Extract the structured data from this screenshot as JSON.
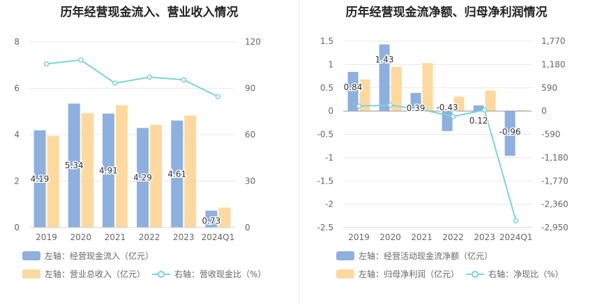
{
  "colors": {
    "bar_primary": "#8eb0de",
    "bar_secondary": "#fdd9a0",
    "line": "#7dd3da",
    "axis_text": "#666666",
    "grid": "#e8e8e8"
  },
  "chart_data": [
    {
      "type": "bar",
      "title": "历年经营现金流入、营业收入情况",
      "categories": [
        "2019",
        "2020",
        "2021",
        "2022",
        "2023",
        "2024Q1"
      ],
      "left_axis": {
        "ticks": [
          "0",
          "2",
          "4",
          "6",
          "8"
        ],
        "range": [
          0,
          8
        ]
      },
      "right_axis": {
        "ticks": [
          "0",
          "30",
          "60",
          "90",
          "120"
        ],
        "range": [
          0,
          120
        ]
      },
      "series": [
        {
          "name": "左轴：经营现金流入（亿元）",
          "axis": "left",
          "kind": "bar",
          "values": [
            4.19,
            5.34,
            4.91,
            4.29,
            4.61,
            0.73
          ],
          "labels": [
            "4.19",
            "5.34",
            "4.91",
            "4.29",
            "4.61",
            "0.73"
          ]
        },
        {
          "name": "左轴：营业总收入（亿元）",
          "axis": "left",
          "kind": "bar",
          "values": [
            3.95,
            4.93,
            5.27,
            4.42,
            4.83,
            0.86
          ]
        },
        {
          "name": "右轴：营收现金比（%）",
          "axis": "right",
          "kind": "line",
          "values": [
            105.8,
            108.3,
            93.3,
            97.2,
            95.5,
            84.6
          ]
        }
      ]
    },
    {
      "type": "bar",
      "title": "历年经营现金流净额、归母净利润情况",
      "categories": [
        "2019",
        "2020",
        "2021",
        "2022",
        "2023",
        "2024Q1"
      ],
      "left_axis": {
        "ticks": [
          "1.5",
          "1",
          "0.5",
          "0",
          "-0.5",
          "-1",
          "-1.5",
          "-2",
          "-2.5"
        ],
        "range": [
          -2.5,
          1.5
        ]
      },
      "right_axis": {
        "ticks": [
          "1,770",
          "1,180",
          "590",
          "0",
          "-590",
          "-1,180",
          "-1,770",
          "-2,360",
          "-2,950"
        ],
        "range": [
          -2950,
          1770
        ]
      },
      "series": [
        {
          "name": "左轴：经营活动现金流净额（亿元）",
          "axis": "left",
          "kind": "bar",
          "values": [
            0.84,
            1.43,
            0.39,
            -0.43,
            0.12,
            -0.96
          ],
          "labels": [
            "0.84",
            "1.43",
            "0.39",
            "-0.43",
            "0.12",
            "-0.96"
          ]
        },
        {
          "name": "左轴：归母净利润（亿元）",
          "axis": "left",
          "kind": "bar",
          "values": [
            0.68,
            0.95,
            1.03,
            0.31,
            0.44,
            0.02
          ]
        },
        {
          "name": "右轴：净现比（%）",
          "axis": "right",
          "kind": "line",
          "values": [
            123,
            150,
            38,
            -138,
            27,
            -2780
          ]
        }
      ]
    }
  ]
}
